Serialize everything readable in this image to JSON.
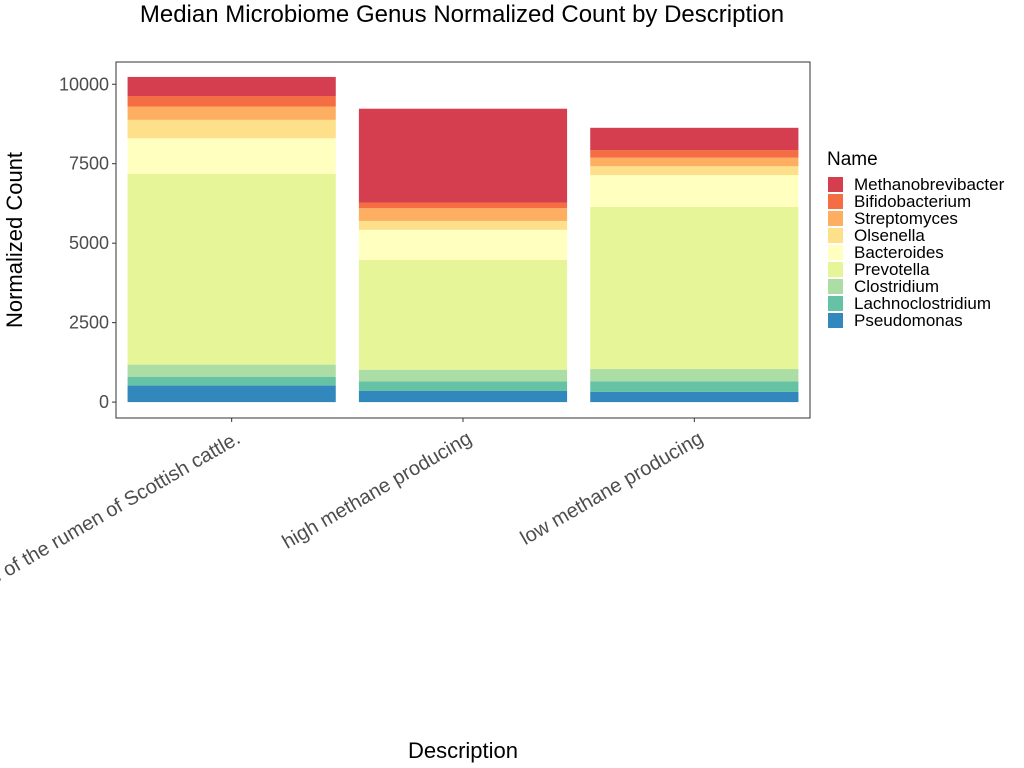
{
  "chart_data": {
    "type": "bar",
    "stacked": true,
    "title": "Median Microbiome Genus Normalized Count by Description",
    "xlabel": "Description",
    "ylabel": "Normalized Count",
    "ylim": [
      -500,
      10700
    ],
    "yticks": [
      0,
      2500,
      5000,
      7500,
      10000
    ],
    "ytick_labels": [
      "0",
      "2500",
      "5000",
      "7500",
      "10000"
    ],
    "categories": [
      "Microbiome of the rumen of Scottish cattle.",
      "high methane producing",
      "low methane producing"
    ],
    "grid": false,
    "legend": {
      "title": "Name",
      "placement": "right"
    },
    "series": [
      {
        "name": "Pseudomonas",
        "color": "#3288BD",
        "values": [
          520,
          350,
          320
        ]
      },
      {
        "name": "Lachnoclostridium",
        "color": "#66C2A5",
        "values": [
          280,
          300,
          330
        ]
      },
      {
        "name": "Clostridium",
        "color": "#ABDDA4",
        "values": [
          380,
          370,
          390
        ]
      },
      {
        "name": "Prevotella",
        "color": "#E6F598",
        "values": [
          6000,
          3450,
          5100
        ]
      },
      {
        "name": "Bacteroides",
        "color": "#FFFFBF",
        "values": [
          1120,
          950,
          1000
        ]
      },
      {
        "name": "Olsenella",
        "color": "#FEE08B",
        "values": [
          580,
          280,
          280
        ]
      },
      {
        "name": "Streptomyces",
        "color": "#FDAE61",
        "values": [
          420,
          400,
          270
        ]
      },
      {
        "name": "Bifidobacterium",
        "color": "#F46D43",
        "values": [
          330,
          180,
          240
        ]
      },
      {
        "name": "Methanobrevibacter",
        "color": "#D53E4F",
        "values": [
          600,
          2950,
          700
        ]
      }
    ]
  }
}
